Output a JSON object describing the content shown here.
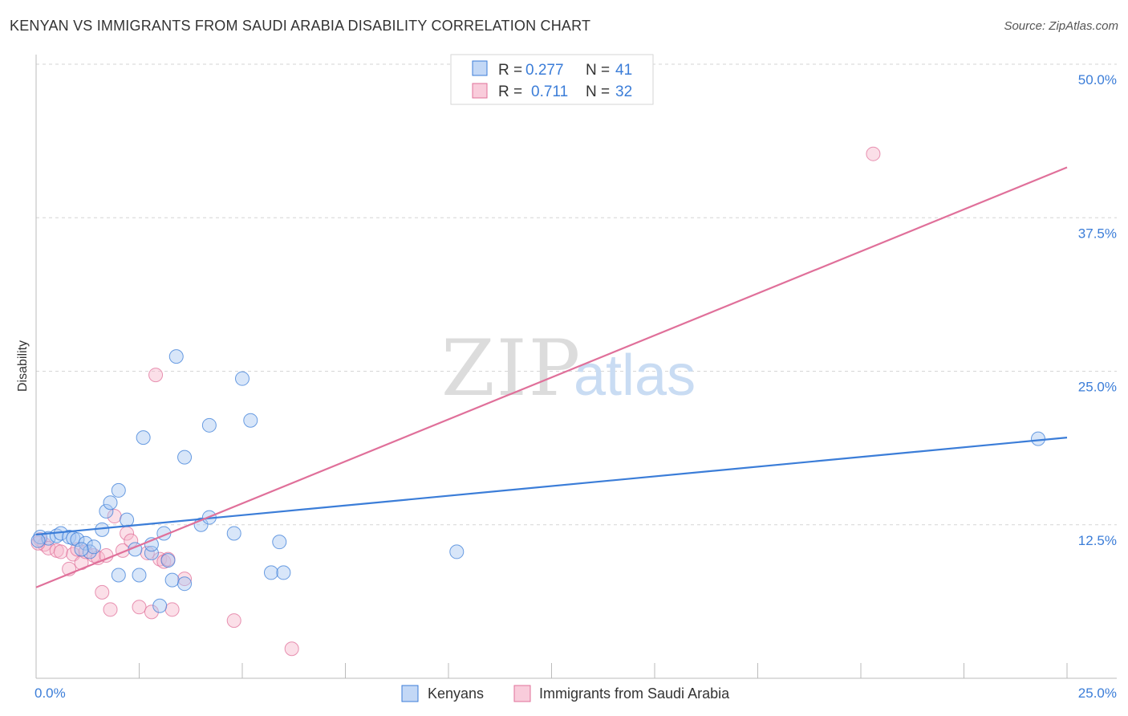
{
  "title": "KENYAN VS IMMIGRANTS FROM SAUDI ARABIA DISABILITY CORRELATION CHART",
  "source": "Source: ZipAtlas.com",
  "colors": {
    "blue": "#3b7dd8",
    "blue_fill": "#a9c8f2",
    "pink": "#e0709a",
    "pink_fill": "#f6b7cc",
    "grid": "#d6d6d6"
  },
  "legend_box": {
    "rows": [
      {
        "r_label": "R = ",
        "r_value": "0.277",
        "n_label": "N = ",
        "n_value": "41"
      },
      {
        "r_label": "R = ",
        "r_value": "0.711",
        "n_label": "N = ",
        "n_value": "32"
      }
    ]
  },
  "bottom_legend": [
    "Kenyans",
    "Immigrants from Saudi Arabia"
  ],
  "watermark": {
    "zip": "ZIP",
    "atlas": "atlas"
  },
  "chart_data": {
    "type": "scatter",
    "title": "KENYAN VS IMMIGRANTS FROM SAUDI ARABIA DISABILITY CORRELATION CHART",
    "xlabel": "",
    "ylabel": "Disability",
    "xlim": [
      0,
      25
    ],
    "ylim": [
      0,
      50
    ],
    "x_tick_labels": [
      "0.0%",
      "25.0%"
    ],
    "y_ticks": [
      12.5,
      25.0,
      37.5,
      50.0
    ],
    "y_tick_labels": [
      "12.5%",
      "25.0%",
      "37.5%",
      "50.0%"
    ],
    "grid": "horizontal dashed",
    "legend_placement": "top-center and bottom",
    "series": [
      {
        "name": "Kenyans",
        "color": "#3b7dd8",
        "points": [
          [
            0.1,
            11.5
          ],
          [
            0.3,
            11.4
          ],
          [
            0.5,
            11.6
          ],
          [
            0.6,
            11.8
          ],
          [
            0.8,
            11.5
          ],
          [
            0.9,
            11.4
          ],
          [
            1.0,
            11.3
          ],
          [
            1.2,
            11.0
          ],
          [
            1.3,
            10.3
          ],
          [
            1.4,
            10.7
          ],
          [
            1.6,
            12.1
          ],
          [
            1.7,
            13.6
          ],
          [
            1.8,
            14.3
          ],
          [
            2.0,
            15.3
          ],
          [
            2.0,
            8.4
          ],
          [
            2.2,
            12.9
          ],
          [
            2.4,
            10.5
          ],
          [
            2.5,
            8.4
          ],
          [
            2.6,
            19.6
          ],
          [
            2.8,
            10.2
          ],
          [
            2.8,
            10.9
          ],
          [
            3.0,
            5.9
          ],
          [
            3.1,
            11.8
          ],
          [
            3.2,
            9.6
          ],
          [
            3.3,
            8.0
          ],
          [
            3.4,
            26.2
          ],
          [
            3.6,
            7.7
          ],
          [
            3.6,
            18.0
          ],
          [
            4.0,
            12.5
          ],
          [
            4.2,
            13.1
          ],
          [
            4.2,
            20.6
          ],
          [
            4.8,
            11.8
          ],
          [
            5.0,
            24.4
          ],
          [
            5.2,
            21.0
          ],
          [
            5.7,
            8.6
          ],
          [
            5.9,
            11.1
          ],
          [
            6.0,
            8.6
          ],
          [
            10.2,
            10.3
          ],
          [
            24.3,
            19.5
          ],
          [
            0.05,
            11.2
          ],
          [
            1.1,
            10.5
          ]
        ],
        "trend": {
          "x": [
            0,
            25
          ],
          "y": [
            11.7,
            19.6
          ]
        }
      },
      {
        "name": "Immigrants from Saudi Arabia",
        "color": "#e0709a",
        "points": [
          [
            0.1,
            11.3
          ],
          [
            0.2,
            10.9
          ],
          [
            0.3,
            10.6
          ],
          [
            0.5,
            10.4
          ],
          [
            0.6,
            10.3
          ],
          [
            0.8,
            8.9
          ],
          [
            0.9,
            10.1
          ],
          [
            1.0,
            10.5
          ],
          [
            1.1,
            9.4
          ],
          [
            1.2,
            10.3
          ],
          [
            1.4,
            10.0
          ],
          [
            1.5,
            9.8
          ],
          [
            1.6,
            7.0
          ],
          [
            1.7,
            10.0
          ],
          [
            1.8,
            5.6
          ],
          [
            1.9,
            13.2
          ],
          [
            2.1,
            10.4
          ],
          [
            2.2,
            11.8
          ],
          [
            2.3,
            11.2
          ],
          [
            2.5,
            5.8
          ],
          [
            2.7,
            10.2
          ],
          [
            2.8,
            5.4
          ],
          [
            2.9,
            24.7
          ],
          [
            3.0,
            9.7
          ],
          [
            3.1,
            9.5
          ],
          [
            3.2,
            9.7
          ],
          [
            3.3,
            5.6
          ],
          [
            3.6,
            8.1
          ],
          [
            4.8,
            4.7
          ],
          [
            6.2,
            2.4
          ],
          [
            20.3,
            42.7
          ],
          [
            0.05,
            11.0
          ]
        ],
        "trend": {
          "x": [
            0,
            25
          ],
          "y": [
            7.4,
            41.6
          ]
        }
      }
    ]
  }
}
